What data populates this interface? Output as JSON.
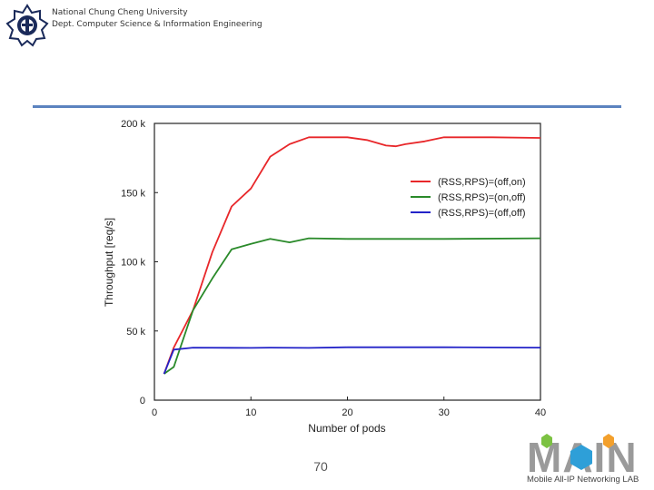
{
  "header": {
    "university": "National Chung Cheng University",
    "department": "Dept. Computer Science & Information Engineering"
  },
  "footer": {
    "page_number": "70",
    "lab_name": "Mobile All-IP Networking LAB",
    "lab_logo_text": "MAIN"
  },
  "chart_data": {
    "type": "line",
    "title": "",
    "xlabel": "Number of pods",
    "ylabel": "Throughput [req/s]",
    "xlim": [
      0,
      40
    ],
    "ylim": [
      0,
      200000
    ],
    "xticks": [
      0,
      10,
      20,
      30,
      40
    ],
    "xtick_labels": [
      "0",
      "10",
      "20",
      "30",
      "40"
    ],
    "yticks": [
      0,
      50000,
      100000,
      150000,
      200000
    ],
    "ytick_labels": [
      "0",
      "50 k",
      "100 k",
      "150 k",
      "200 k"
    ],
    "grid": false,
    "legend_position": "upper-right",
    "series": [
      {
        "name": "(RSS,RPS)=(off,on)",
        "color": "#e8272a",
        "points": [
          [
            1,
            19000
          ],
          [
            2,
            38000
          ],
          [
            4,
            65000
          ],
          [
            6,
            107000
          ],
          [
            8,
            140000
          ],
          [
            10,
            153000
          ],
          [
            12,
            176000
          ],
          [
            14,
            185000
          ],
          [
            16,
            190000
          ],
          [
            18,
            190000
          ],
          [
            20,
            190000
          ],
          [
            22,
            188000
          ],
          [
            24,
            184000
          ],
          [
            25,
            183500
          ],
          [
            26,
            185000
          ],
          [
            28,
            187000
          ],
          [
            30,
            190000
          ],
          [
            35,
            190000
          ],
          [
            40,
            189500
          ]
        ]
      },
      {
        "name": "(RSS,RPS)=(on,off)",
        "color": "#2a8a2a",
        "points": [
          [
            1,
            19000
          ],
          [
            2,
            24000
          ],
          [
            4,
            65000
          ],
          [
            6,
            88000
          ],
          [
            8,
            109000
          ],
          [
            10,
            113000
          ],
          [
            12,
            116500
          ],
          [
            14,
            114000
          ],
          [
            16,
            117000
          ],
          [
            20,
            116500
          ],
          [
            30,
            116500
          ],
          [
            40,
            117000
          ]
        ]
      },
      {
        "name": "(RSS,RPS)=(off,off)",
        "color": "#2323c8",
        "points": [
          [
            1,
            19000
          ],
          [
            2,
            36500
          ],
          [
            4,
            38000
          ],
          [
            10,
            37800
          ],
          [
            12,
            38000
          ],
          [
            16,
            37800
          ],
          [
            20,
            38200
          ],
          [
            30,
            38200
          ],
          [
            40,
            38000
          ]
        ]
      }
    ]
  }
}
